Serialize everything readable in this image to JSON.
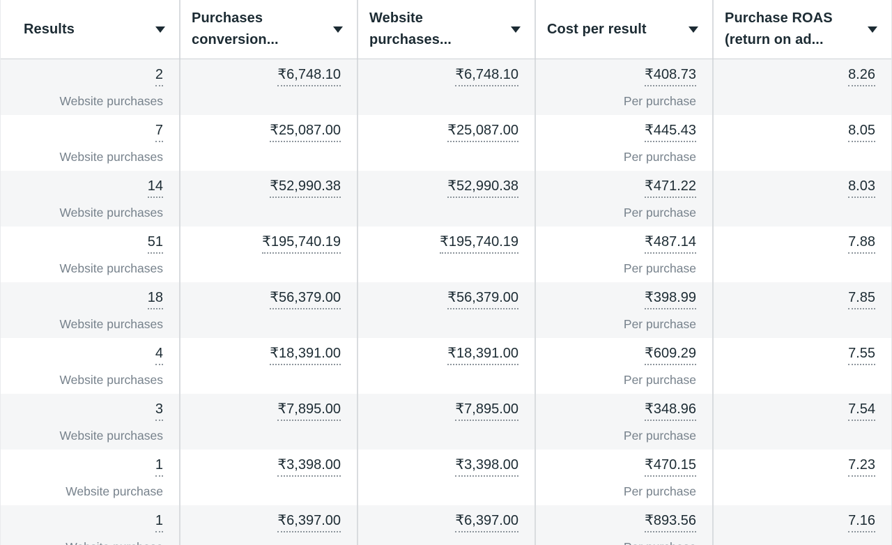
{
  "table": {
    "columns": [
      {
        "id": "results",
        "line1": "Results",
        "line2": ""
      },
      {
        "id": "purchases-conversion",
        "line1": "Purchases",
        "line2": "conversion..."
      },
      {
        "id": "website-purchases",
        "line1": "Website",
        "line2": "purchases..."
      },
      {
        "id": "cost-per-result",
        "line1": "Cost per result",
        "line2": ""
      },
      {
        "id": "purchase-roas",
        "line1": "Purchase ROAS",
        "line2": "(return on ad..."
      }
    ],
    "rows": [
      {
        "results": "2",
        "results_sub": "Website purchases",
        "purchases_conversion_value": "₹6,748.10",
        "website_purchases_value": "₹6,748.10",
        "cost_per_result_value": "₹408.73",
        "cost_per_result_sub": "Per purchase",
        "purchase_roas": "8.26"
      },
      {
        "results": "7",
        "results_sub": "Website purchases",
        "purchases_conversion_value": "₹25,087.00",
        "website_purchases_value": "₹25,087.00",
        "cost_per_result_value": "₹445.43",
        "cost_per_result_sub": "Per purchase",
        "purchase_roas": "8.05"
      },
      {
        "results": "14",
        "results_sub": "Website purchases",
        "purchases_conversion_value": "₹52,990.38",
        "website_purchases_value": "₹52,990.38",
        "cost_per_result_value": "₹471.22",
        "cost_per_result_sub": "Per purchase",
        "purchase_roas": "8.03"
      },
      {
        "results": "51",
        "results_sub": "Website purchases",
        "purchases_conversion_value": "₹195,740.19",
        "website_purchases_value": "₹195,740.19",
        "cost_per_result_value": "₹487.14",
        "cost_per_result_sub": "Per purchase",
        "purchase_roas": "7.88"
      },
      {
        "results": "18",
        "results_sub": "Website purchases",
        "purchases_conversion_value": "₹56,379.00",
        "website_purchases_value": "₹56,379.00",
        "cost_per_result_value": "₹398.99",
        "cost_per_result_sub": "Per purchase",
        "purchase_roas": "7.85"
      },
      {
        "results": "4",
        "results_sub": "Website purchases",
        "purchases_conversion_value": "₹18,391.00",
        "website_purchases_value": "₹18,391.00",
        "cost_per_result_value": "₹609.29",
        "cost_per_result_sub": "Per purchase",
        "purchase_roas": "7.55"
      },
      {
        "results": "3",
        "results_sub": "Website purchases",
        "purchases_conversion_value": "₹7,895.00",
        "website_purchases_value": "₹7,895.00",
        "cost_per_result_value": "₹348.96",
        "cost_per_result_sub": "Per purchase",
        "purchase_roas": "7.54"
      },
      {
        "results": "1",
        "results_sub": "Website purchase",
        "purchases_conversion_value": "₹3,398.00",
        "website_purchases_value": "₹3,398.00",
        "cost_per_result_value": "₹470.15",
        "cost_per_result_sub": "Per purchase",
        "purchase_roas": "7.23"
      },
      {
        "results": "1",
        "results_sub": "Website purchase",
        "purchases_conversion_value": "₹6,397.00",
        "website_purchases_value": "₹6,397.00",
        "cost_per_result_value": "₹893.56",
        "cost_per_result_sub": "Per purchase",
        "purchase_roas": "7.16"
      }
    ],
    "colors": {
      "header_text": "#1c2b33",
      "value_text": "#1c2b33",
      "secondary_text": "#77828c",
      "row_alt_bg": "#f5f6f7",
      "divider": "#d9dcdf",
      "header_border": "#ced2d6",
      "underline": "#8d959c"
    }
  }
}
